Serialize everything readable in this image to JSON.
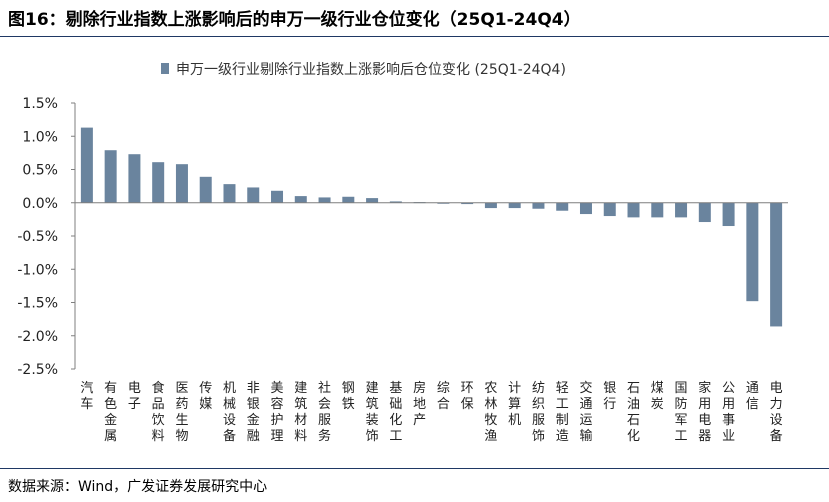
{
  "header": {
    "figure_label": "图16：",
    "title": "剔除行业指数上涨影响后的申万一级行业仓位变化（25Q1-24Q4）"
  },
  "footer": {
    "source": "数据来源：Wind，广发证券发展研究中心"
  },
  "colors": {
    "bar": "#6a849e",
    "rule": "#1f3864",
    "axis": "#7f7f7f"
  },
  "chart_data": {
    "type": "bar",
    "title": "",
    "xlabel": "",
    "ylabel": "",
    "legend_position": "top",
    "grid": false,
    "ylim": [
      -2.5,
      1.5
    ],
    "yticks": [
      "1.5%",
      "1.0%",
      "0.5%",
      "0.0%",
      "-0.5%",
      "-1.0%",
      "-1.5%",
      "-2.0%",
      "-2.5%"
    ],
    "categories": [
      "汽车",
      "有色金属",
      "电子",
      "食品饮料",
      "医药生物",
      "传媒",
      "机械设备",
      "非银金融",
      "美容护理",
      "建筑材料",
      "社会服务",
      "钢铁",
      "建筑装饰",
      "基础化工",
      "房地产",
      "综合",
      "环保",
      "农林牧渔",
      "计算机",
      "纺织服饰",
      "轻工制造",
      "交通运输",
      "银行",
      "石油石化",
      "煤炭",
      "国防军工",
      "家用电器",
      "公用事业",
      "通信",
      "电力设备"
    ],
    "series": [
      {
        "name": "申万一级行业剔除行业指数上涨影响后仓位变化 (25Q1-24Q4)",
        "unit": "%",
        "values": [
          1.13,
          0.79,
          0.73,
          0.61,
          0.58,
          0.39,
          0.28,
          0.23,
          0.18,
          0.1,
          0.08,
          0.09,
          0.07,
          0.02,
          0.01,
          -0.01,
          -0.02,
          -0.08,
          -0.08,
          -0.09,
          -0.12,
          -0.17,
          -0.2,
          -0.22,
          -0.22,
          -0.22,
          -0.29,
          -0.35,
          -1.48,
          -1.86
        ]
      }
    ]
  }
}
